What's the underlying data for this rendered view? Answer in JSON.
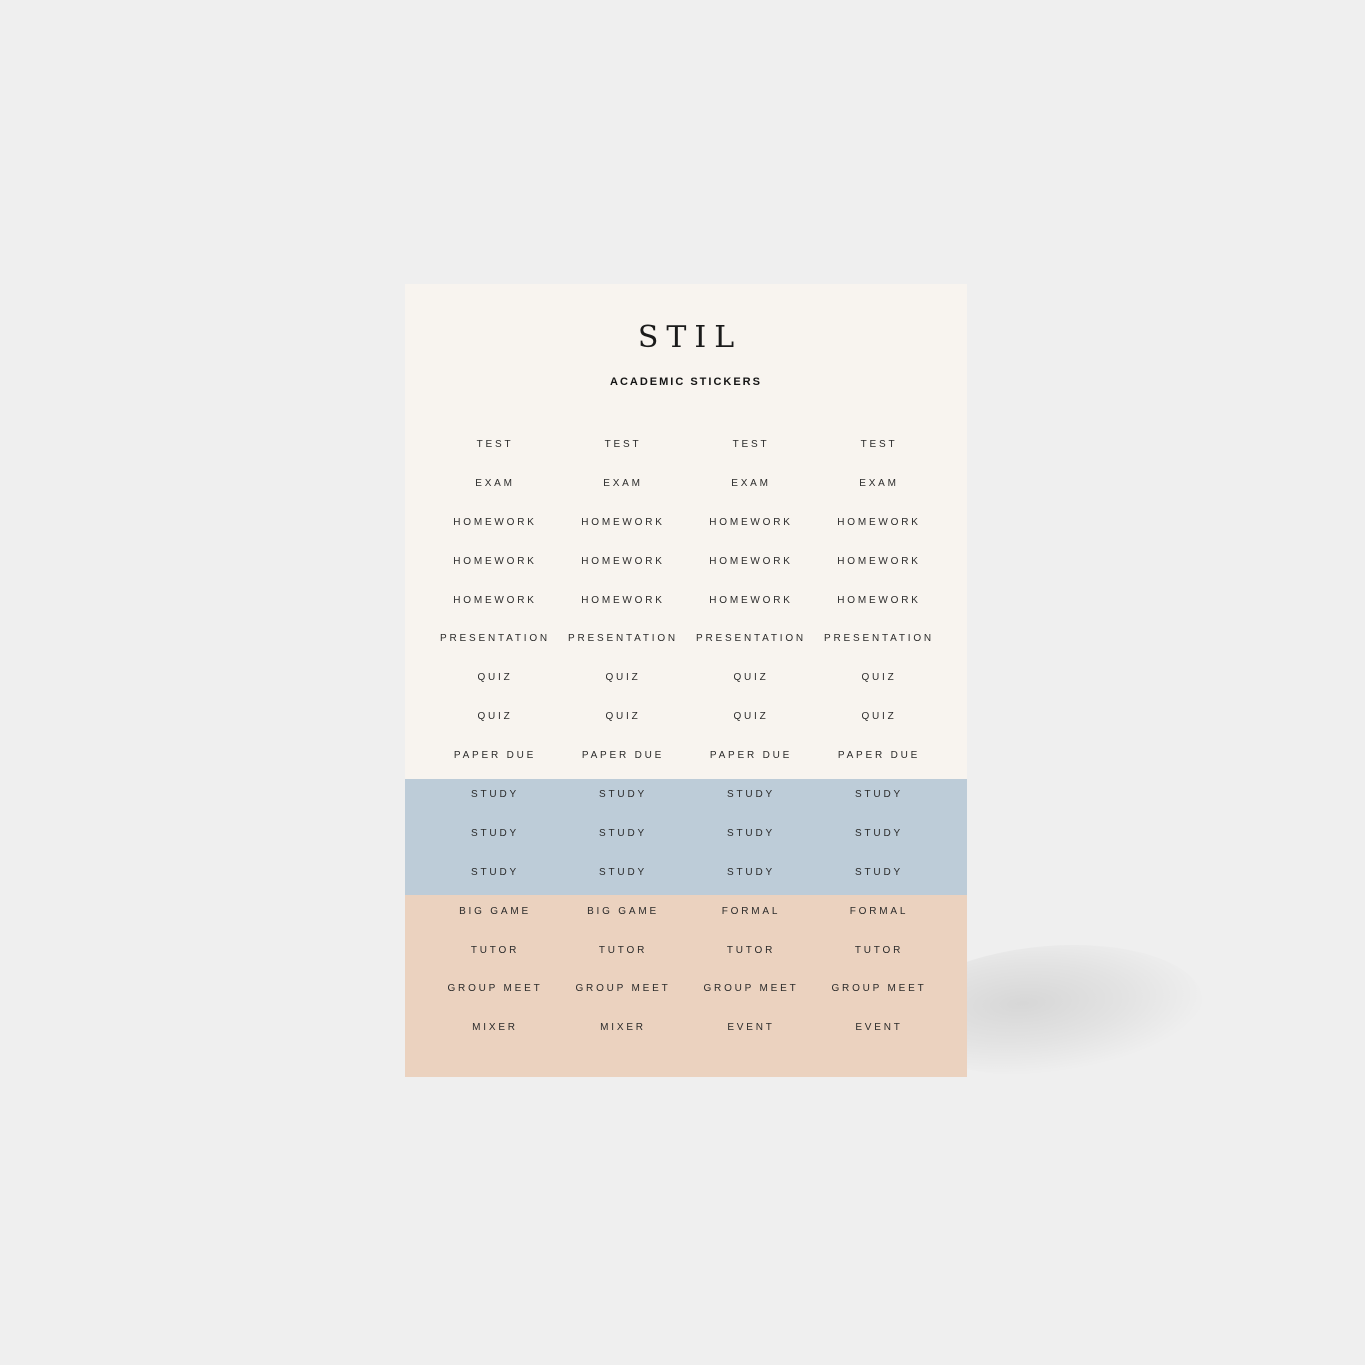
{
  "brand": "STIL",
  "title": "ACADEMIC STICKERS",
  "colors": {
    "background": "#efefef",
    "sheet": "#f8f4ef",
    "blue_band": "#bdccd8",
    "peach_band": "#ebd2bf",
    "text": "#2a2a2a"
  },
  "rows": [
    [
      "TEST",
      "TEST",
      "TEST",
      "TEST"
    ],
    [
      "EXAM",
      "EXAM",
      "EXAM",
      "EXAM"
    ],
    [
      "HOMEWORK",
      "HOMEWORK",
      "HOMEWORK",
      "HOMEWORK"
    ],
    [
      "HOMEWORK",
      "HOMEWORK",
      "HOMEWORK",
      "HOMEWORK"
    ],
    [
      "HOMEWORK",
      "HOMEWORK",
      "HOMEWORK",
      "HOMEWORK"
    ],
    [
      "PRESENTATION",
      "PRESENTATION",
      "PRESENTATION",
      "PRESENTATION"
    ],
    [
      "QUIZ",
      "QUIZ",
      "QUIZ",
      "QUIZ"
    ],
    [
      "QUIZ",
      "QUIZ",
      "QUIZ",
      "QUIZ"
    ],
    [
      "PAPER DUE",
      "PAPER DUE",
      "PAPER DUE",
      "PAPER DUE"
    ],
    [
      "STUDY",
      "STUDY",
      "STUDY",
      "STUDY"
    ],
    [
      "STUDY",
      "STUDY",
      "STUDY",
      "STUDY"
    ],
    [
      "STUDY",
      "STUDY",
      "STUDY",
      "STUDY"
    ],
    [
      "BIG GAME",
      "BIG GAME",
      "FORMAL",
      "FORMAL"
    ],
    [
      "TUTOR",
      "TUTOR",
      "TUTOR",
      "TUTOR"
    ],
    [
      "GROUP MEET",
      "GROUP MEET",
      "GROUP MEET",
      "GROUP MEET"
    ],
    [
      "MIXER",
      "MIXER",
      "EVENT",
      "EVENT"
    ]
  ]
}
